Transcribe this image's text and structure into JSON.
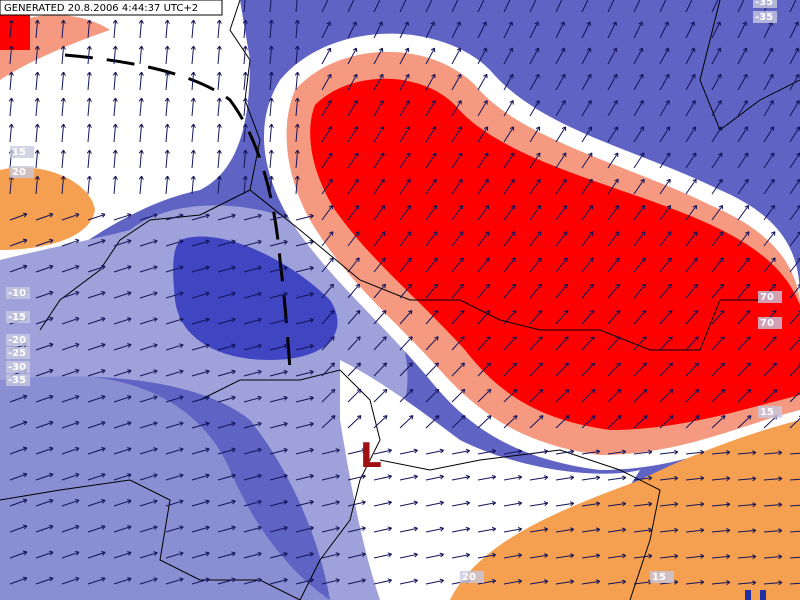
{
  "header": {
    "generated": "GENERATED 20.8.2006 4:44:37 UTC+2"
  },
  "low_label": "L",
  "contour_labels": [
    "-35",
    "-35",
    "70",
    "70",
    "15",
    "15",
    "20",
    "-10",
    "-15",
    "-20",
    "-25",
    "-30",
    "-35",
    "20",
    "15"
  ]
}
